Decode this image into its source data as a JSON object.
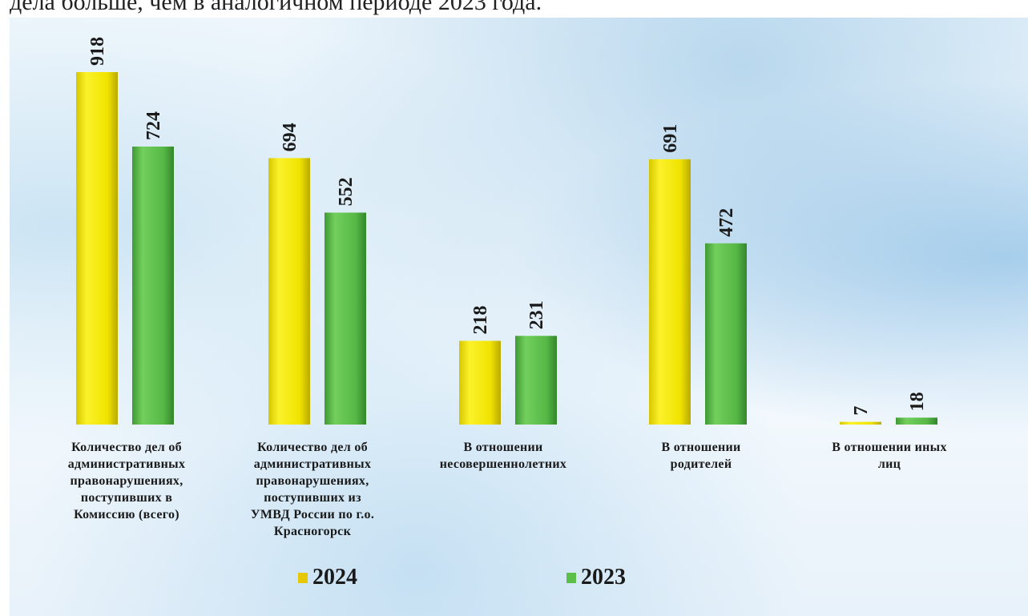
{
  "header_text": "дела больше, чем в аналогичном периоде 2023 года.",
  "colors": {
    "series_2024": "#f2e600",
    "series_2023": "#5cbf4a"
  },
  "chart_data": {
    "type": "bar",
    "categories": [
      "Количество дел об\nадминистративных\nправонарушениях,\nпоступивших в\nКомиссию (всего)",
      "Количество дел об\nадминистративных\nправонарушениях,\nпоступивших из\nУМВД России по г.о.\nКрасногорск",
      "В отношении\nнесовершеннолетних",
      "В отношении\nродителей",
      "В отношении иных\nлиц"
    ],
    "series": [
      {
        "name": "2024",
        "values": [
          918,
          694,
          218,
          691,
          7
        ]
      },
      {
        "name": "2023",
        "values": [
          724,
          552,
          231,
          472,
          18
        ]
      }
    ],
    "ylim": [
      0,
      918
    ],
    "grid": false,
    "legend_position": "bottom",
    "data_labels": "rotated, above bars"
  }
}
